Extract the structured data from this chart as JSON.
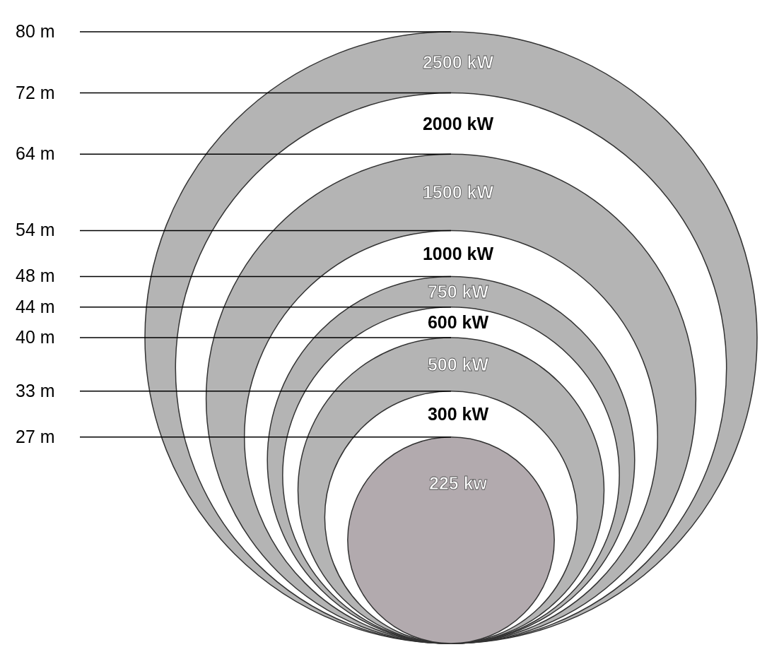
{
  "chart_data": {
    "type": "other",
    "categories": [
      "2500 kW",
      "2000 kW",
      "1500 kW",
      "1000 kW",
      "750 kW",
      "600 kW",
      "500 kW",
      "300 kW",
      "225 kw"
    ],
    "values": [
      80,
      72,
      64,
      54,
      48,
      44,
      40,
      33,
      27
    ],
    "value_labels": [
      "80 m",
      "72 m",
      "64 m",
      "54 m",
      "48 m",
      "44 m",
      "40 m",
      "33 m",
      "27 m"
    ],
    "colors": [
      "#b4b4b4",
      "#ffffff",
      "#b4b4b4",
      "#ffffff",
      "#b4b4b4",
      "#ffffff",
      "#b4b4b4",
      "#ffffff",
      "#b2aaae"
    ]
  }
}
